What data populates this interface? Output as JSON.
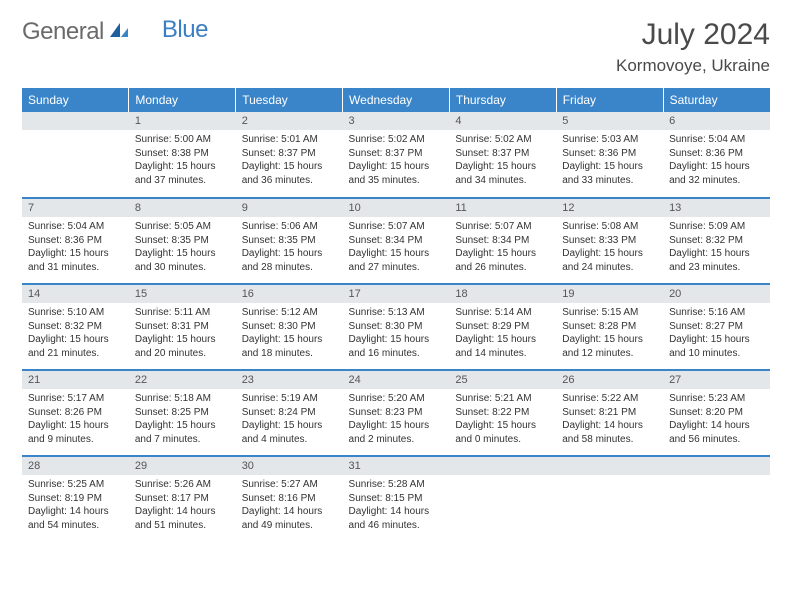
{
  "logo": {
    "part1": "General",
    "part2": "Blue"
  },
  "title": "July 2024",
  "location": "Kormovoye, Ukraine",
  "colors": {
    "header_bg": "#3a85c9",
    "header_text": "#ffffff",
    "daynum_bg": "#e4e7ea",
    "row_divider": "#3a85c9",
    "logo_gray": "#6b6b6b",
    "logo_blue": "#3a7fc4",
    "body_text": "#333333"
  },
  "weekdays": [
    "Sunday",
    "Monday",
    "Tuesday",
    "Wednesday",
    "Thursday",
    "Friday",
    "Saturday"
  ],
  "weeks": [
    [
      {
        "day": "",
        "sunrise": "",
        "sunset": "",
        "daylight": ""
      },
      {
        "day": "1",
        "sunrise": "Sunrise: 5:00 AM",
        "sunset": "Sunset: 8:38 PM",
        "daylight": "Daylight: 15 hours and 37 minutes."
      },
      {
        "day": "2",
        "sunrise": "Sunrise: 5:01 AM",
        "sunset": "Sunset: 8:37 PM",
        "daylight": "Daylight: 15 hours and 36 minutes."
      },
      {
        "day": "3",
        "sunrise": "Sunrise: 5:02 AM",
        "sunset": "Sunset: 8:37 PM",
        "daylight": "Daylight: 15 hours and 35 minutes."
      },
      {
        "day": "4",
        "sunrise": "Sunrise: 5:02 AM",
        "sunset": "Sunset: 8:37 PM",
        "daylight": "Daylight: 15 hours and 34 minutes."
      },
      {
        "day": "5",
        "sunrise": "Sunrise: 5:03 AM",
        "sunset": "Sunset: 8:36 PM",
        "daylight": "Daylight: 15 hours and 33 minutes."
      },
      {
        "day": "6",
        "sunrise": "Sunrise: 5:04 AM",
        "sunset": "Sunset: 8:36 PM",
        "daylight": "Daylight: 15 hours and 32 minutes."
      }
    ],
    [
      {
        "day": "7",
        "sunrise": "Sunrise: 5:04 AM",
        "sunset": "Sunset: 8:36 PM",
        "daylight": "Daylight: 15 hours and 31 minutes."
      },
      {
        "day": "8",
        "sunrise": "Sunrise: 5:05 AM",
        "sunset": "Sunset: 8:35 PM",
        "daylight": "Daylight: 15 hours and 30 minutes."
      },
      {
        "day": "9",
        "sunrise": "Sunrise: 5:06 AM",
        "sunset": "Sunset: 8:35 PM",
        "daylight": "Daylight: 15 hours and 28 minutes."
      },
      {
        "day": "10",
        "sunrise": "Sunrise: 5:07 AM",
        "sunset": "Sunset: 8:34 PM",
        "daylight": "Daylight: 15 hours and 27 minutes."
      },
      {
        "day": "11",
        "sunrise": "Sunrise: 5:07 AM",
        "sunset": "Sunset: 8:34 PM",
        "daylight": "Daylight: 15 hours and 26 minutes."
      },
      {
        "day": "12",
        "sunrise": "Sunrise: 5:08 AM",
        "sunset": "Sunset: 8:33 PM",
        "daylight": "Daylight: 15 hours and 24 minutes."
      },
      {
        "day": "13",
        "sunrise": "Sunrise: 5:09 AM",
        "sunset": "Sunset: 8:32 PM",
        "daylight": "Daylight: 15 hours and 23 minutes."
      }
    ],
    [
      {
        "day": "14",
        "sunrise": "Sunrise: 5:10 AM",
        "sunset": "Sunset: 8:32 PM",
        "daylight": "Daylight: 15 hours and 21 minutes."
      },
      {
        "day": "15",
        "sunrise": "Sunrise: 5:11 AM",
        "sunset": "Sunset: 8:31 PM",
        "daylight": "Daylight: 15 hours and 20 minutes."
      },
      {
        "day": "16",
        "sunrise": "Sunrise: 5:12 AM",
        "sunset": "Sunset: 8:30 PM",
        "daylight": "Daylight: 15 hours and 18 minutes."
      },
      {
        "day": "17",
        "sunrise": "Sunrise: 5:13 AM",
        "sunset": "Sunset: 8:30 PM",
        "daylight": "Daylight: 15 hours and 16 minutes."
      },
      {
        "day": "18",
        "sunrise": "Sunrise: 5:14 AM",
        "sunset": "Sunset: 8:29 PM",
        "daylight": "Daylight: 15 hours and 14 minutes."
      },
      {
        "day": "19",
        "sunrise": "Sunrise: 5:15 AM",
        "sunset": "Sunset: 8:28 PM",
        "daylight": "Daylight: 15 hours and 12 minutes."
      },
      {
        "day": "20",
        "sunrise": "Sunrise: 5:16 AM",
        "sunset": "Sunset: 8:27 PM",
        "daylight": "Daylight: 15 hours and 10 minutes."
      }
    ],
    [
      {
        "day": "21",
        "sunrise": "Sunrise: 5:17 AM",
        "sunset": "Sunset: 8:26 PM",
        "daylight": "Daylight: 15 hours and 9 minutes."
      },
      {
        "day": "22",
        "sunrise": "Sunrise: 5:18 AM",
        "sunset": "Sunset: 8:25 PM",
        "daylight": "Daylight: 15 hours and 7 minutes."
      },
      {
        "day": "23",
        "sunrise": "Sunrise: 5:19 AM",
        "sunset": "Sunset: 8:24 PM",
        "daylight": "Daylight: 15 hours and 4 minutes."
      },
      {
        "day": "24",
        "sunrise": "Sunrise: 5:20 AM",
        "sunset": "Sunset: 8:23 PM",
        "daylight": "Daylight: 15 hours and 2 minutes."
      },
      {
        "day": "25",
        "sunrise": "Sunrise: 5:21 AM",
        "sunset": "Sunset: 8:22 PM",
        "daylight": "Daylight: 15 hours and 0 minutes."
      },
      {
        "day": "26",
        "sunrise": "Sunrise: 5:22 AM",
        "sunset": "Sunset: 8:21 PM",
        "daylight": "Daylight: 14 hours and 58 minutes."
      },
      {
        "day": "27",
        "sunrise": "Sunrise: 5:23 AM",
        "sunset": "Sunset: 8:20 PM",
        "daylight": "Daylight: 14 hours and 56 minutes."
      }
    ],
    [
      {
        "day": "28",
        "sunrise": "Sunrise: 5:25 AM",
        "sunset": "Sunset: 8:19 PM",
        "daylight": "Daylight: 14 hours and 54 minutes."
      },
      {
        "day": "29",
        "sunrise": "Sunrise: 5:26 AM",
        "sunset": "Sunset: 8:17 PM",
        "daylight": "Daylight: 14 hours and 51 minutes."
      },
      {
        "day": "30",
        "sunrise": "Sunrise: 5:27 AM",
        "sunset": "Sunset: 8:16 PM",
        "daylight": "Daylight: 14 hours and 49 minutes."
      },
      {
        "day": "31",
        "sunrise": "Sunrise: 5:28 AM",
        "sunset": "Sunset: 8:15 PM",
        "daylight": "Daylight: 14 hours and 46 minutes."
      },
      {
        "day": "",
        "sunrise": "",
        "sunset": "",
        "daylight": ""
      },
      {
        "day": "",
        "sunrise": "",
        "sunset": "",
        "daylight": ""
      },
      {
        "day": "",
        "sunrise": "",
        "sunset": "",
        "daylight": ""
      }
    ]
  ]
}
